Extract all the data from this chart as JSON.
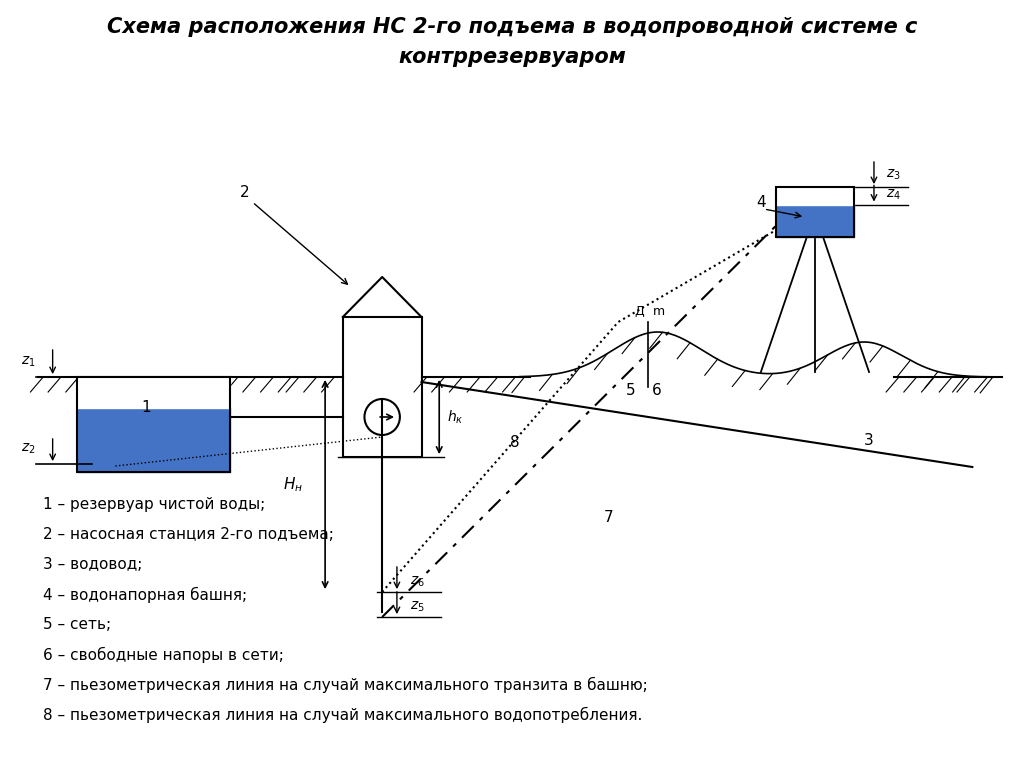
{
  "title_line1": "Схема расположения НС 2-го подъема в водопроводной системе с",
  "title_line2": "контррезервуаром",
  "legend": [
    "1 – резервуар чистой воды;",
    "2 – насосная станция 2-го подъема;",
    "3 – водовод;",
    "4 – водонапорная башня;",
    "5 – сеть;",
    "6 – свободные напоры в сети;",
    "7 – пьезометрическая линия на случай максимального транзита в башню;",
    "8 – пьезометрическая линия на случай максимального водопотребления."
  ],
  "bg_color": "#ffffff",
  "line_color": "#000000",
  "water_color": "#4472C4"
}
